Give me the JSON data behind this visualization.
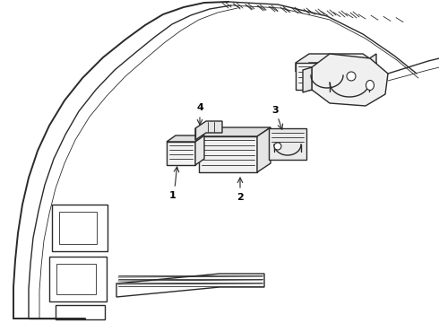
{
  "bg_color": "#ffffff",
  "line_color": "#2a2a2a",
  "label_color": "#000000",
  "lw_main": 1.0,
  "lw_thin": 0.6,
  "lw_thick": 1.4,
  "lw_med": 0.8
}
